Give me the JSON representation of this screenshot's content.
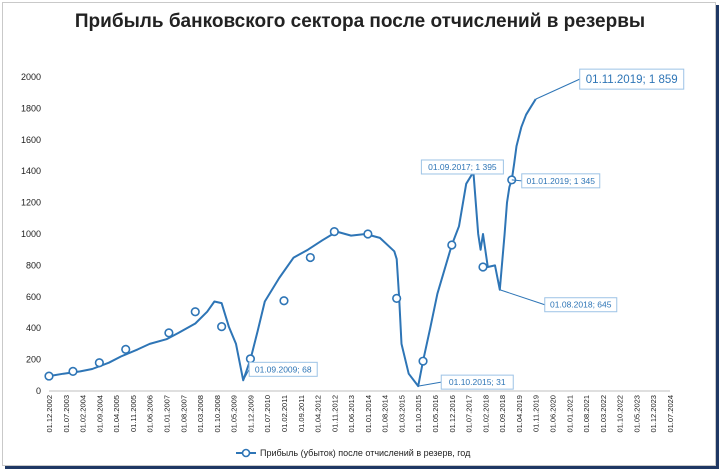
{
  "chart_data": {
    "type": "line",
    "title": "Прибыль банковского сектора после отчислений в резервы",
    "ylim": [
      0,
      2000
    ],
    "yticks": [
      0,
      200,
      400,
      600,
      800,
      1000,
      1200,
      1400,
      1600,
      1800,
      2000
    ],
    "grid": false,
    "legend_position": "bottom",
    "x_tick_labels": [
      "01.12.2002",
      "01.07.2003",
      "01.02.2004",
      "01.09.2004",
      "01.04.2005",
      "01.11.2005",
      "01.06.2006",
      "01.01.2007",
      "01.08.2007",
      "01.03.2008",
      "01.10.2008",
      "01.05.2009",
      "01.12.2009",
      "01.07.2010",
      "01.02.2011",
      "01.09.2011",
      "01.04.2012",
      "01.11.2012",
      "01.06.2013",
      "01.01.2014",
      "01.08.2014",
      "01.03.2015",
      "01.10.2015",
      "01.05.2016",
      "01.12.2016",
      "01.07.2017",
      "01.02.2018",
      "01.09.2018",
      "01.04.2019",
      "01.11.2019",
      "01.06.2020",
      "01.01.2021",
      "01.08.2021",
      "01.03.2022",
      "01.10.2022",
      "01.05.2023",
      "01.12.2023",
      "01.07.2024"
    ],
    "series": [
      {
        "name": "Прибыль (убыток) после отчислений в резерв, год",
        "color": "#2e75b6",
        "x": [
          "2002-12",
          "2003-06",
          "2004-01",
          "2004-06",
          "2005-01",
          "2005-06",
          "2006-01",
          "2006-06",
          "2007-01",
          "2007-06",
          "2008-01",
          "2008-06",
          "2008-09",
          "2008-12",
          "2009-03",
          "2009-06",
          "2009-09",
          "2009-12",
          "2010-03",
          "2010-06",
          "2010-12",
          "2011-06",
          "2011-12",
          "2012-06",
          "2012-12",
          "2013-06",
          "2013-12",
          "2014-06",
          "2014-12",
          "2015-01",
          "2015-02",
          "2015-03",
          "2015-06",
          "2015-10",
          "2015-12",
          "2016-03",
          "2016-06",
          "2016-12",
          "2017-03",
          "2017-06",
          "2017-09",
          "2017-11",
          "2017-12",
          "2018-01",
          "2018-03",
          "2018-06",
          "2018-08",
          "2018-10",
          "2018-11",
          "2018-12",
          "2019-01",
          "2019-02",
          "2019-03",
          "2019-05",
          "2019-07",
          "2019-09",
          "2019-11"
        ],
        "values": [
          95,
          110,
          125,
          140,
          180,
          220,
          265,
          300,
          330,
          370,
          430,
          505,
          570,
          560,
          410,
          300,
          68,
          200,
          380,
          570,
          720,
          850,
          900,
          960,
          1015,
          990,
          1000,
          975,
          890,
          840,
          600,
          300,
          110,
          31,
          190,
          400,
          620,
          930,
          1050,
          1320,
          1395,
          1000,
          900,
          1000,
          790,
          800,
          645,
          1000,
          1200,
          1300,
          1345,
          1450,
          1560,
          1680,
          1760,
          1810,
          1859
        ],
        "markers": [
          {
            "x": "2002-12",
            "y": 95
          },
          {
            "x": "2003-10",
            "y": 125
          },
          {
            "x": "2004-09",
            "y": 180
          },
          {
            "x": "2005-08",
            "y": 265
          },
          {
            "x": "2007-02",
            "y": 370
          },
          {
            "x": "2008-01",
            "y": 505
          },
          {
            "x": "2008-12",
            "y": 410
          },
          {
            "x": "2009-12",
            "y": 205
          },
          {
            "x": "2011-02",
            "y": 575
          },
          {
            "x": "2012-01",
            "y": 850
          },
          {
            "x": "2012-11",
            "y": 1015
          },
          {
            "x": "2014-01",
            "y": 1000
          },
          {
            "x": "2015-01",
            "y": 590
          },
          {
            "x": "2015-12",
            "y": 190
          },
          {
            "x": "2016-12",
            "y": 930
          },
          {
            "x": "2018-01",
            "y": 790
          },
          {
            "x": "2019-01",
            "y": 1345
          }
        ]
      }
    ],
    "annotations": [
      {
        "text": "01.11.2019; 1 859",
        "x": "2019-11",
        "y": 1859
      },
      {
        "text": "01.09.2017; 1 395",
        "x": "2017-09",
        "y": 1395
      },
      {
        "text": "01.01.2019; 1 345",
        "x": "2019-01",
        "y": 1345
      },
      {
        "text": "01.08.2018; 645",
        "x": "2018-08",
        "y": 645
      },
      {
        "text": "01.09.2009; 68",
        "x": "2009-09",
        "y": 68
      },
      {
        "text": "01.10.2015; 31",
        "x": "2015-10",
        "y": 31
      }
    ]
  }
}
